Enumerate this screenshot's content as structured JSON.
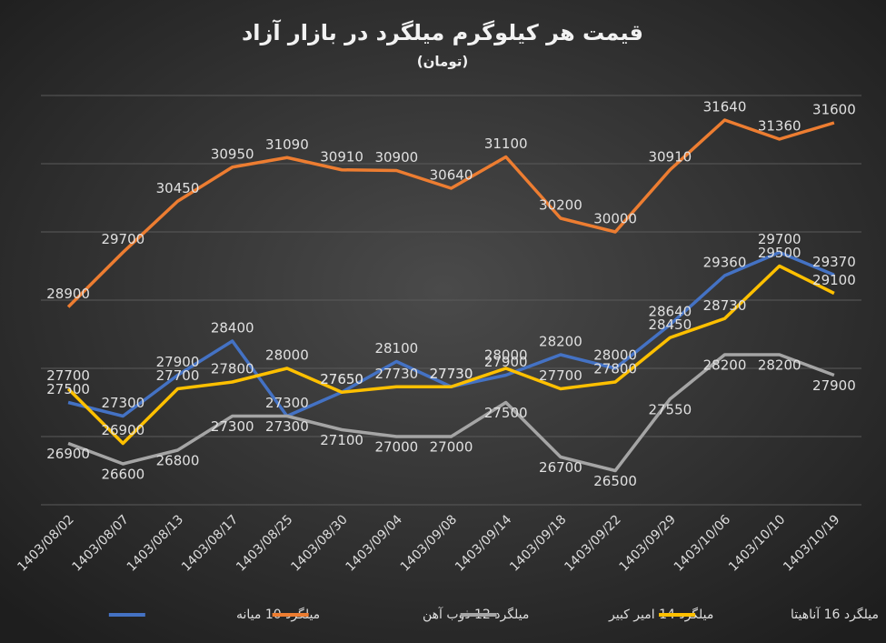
{
  "chart_data": {
    "type": "line",
    "title": "قیمت هر کیلوگرم میلگرد در بازار آزاد",
    "subtitle": "(تومان)",
    "categories": [
      "1403/08/02",
      "1403/08/07",
      "1403/08/13",
      "1403/08/17",
      "1403/08/25",
      "1403/08/30",
      "1403/09/04",
      "1403/09/08",
      "1403/09/14",
      "1403/09/18",
      "1403/09/22",
      "1403/09/29",
      "1403/10/06",
      "1403/10/10",
      "1403/10/19"
    ],
    "series": [
      {
        "name": "میلگرد 10 میانه",
        "color": "#4472c4",
        "values": [
          27500,
          27300,
          27900,
          28400,
          27300,
          27650,
          28100,
          27730,
          27900,
          28200,
          28000,
          28640,
          29360,
          29700,
          29370
        ]
      },
      {
        "name": "میلگرد  12 ذوب آهن",
        "color": "#ed7d31",
        "values": [
          28900,
          29700,
          30450,
          30950,
          31090,
          30910,
          30900,
          30640,
          31100,
          30200,
          30000,
          30910,
          31640,
          31360,
          31600
        ]
      },
      {
        "name": "میلگرد 14 امیر کبیر",
        "color": "#a5a5a5",
        "values": [
          26900,
          26600,
          26800,
          27300,
          27300,
          27100,
          27000,
          27000,
          27500,
          26700,
          26500,
          27550,
          28200,
          28200,
          27900
        ]
      },
      {
        "name": "میلگرد 16 آناهیتا",
        "color": "#ffc000",
        "values": [
          27700,
          26900,
          27700,
          27800,
          28000,
          27650,
          27730,
          27730,
          28000,
          27700,
          27800,
          28450,
          28730,
          29500,
          29100
        ]
      }
    ],
    "ylim": [
      26000,
      32000
    ],
    "yticks": [
      26000,
      27000,
      28000,
      29000,
      30000,
      31000,
      32000
    ],
    "grid": true
  }
}
